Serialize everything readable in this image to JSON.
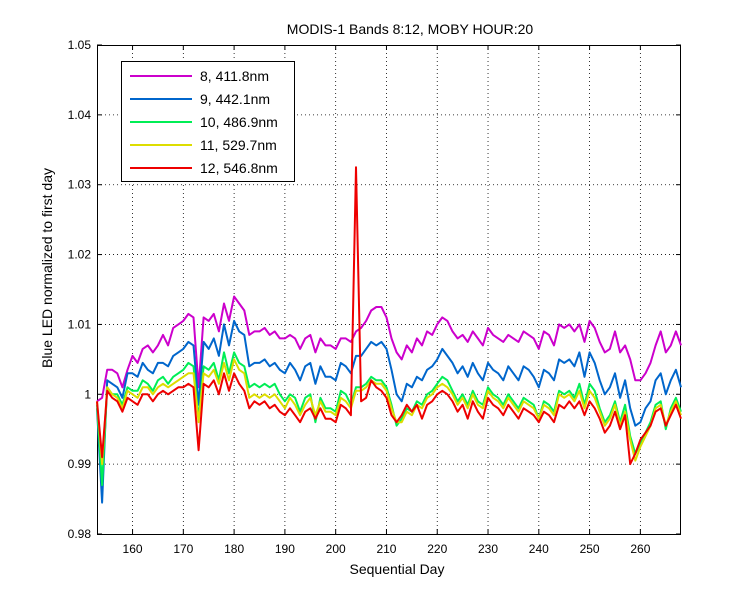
{
  "chart_data": {
    "type": "line",
    "title": "MODIS-1 Bands 8:12, MOBY HOUR:20",
    "xlabel": "Sequential Day",
    "ylabel": "Blue LED normalized to first day",
    "xlim": [
      153,
      268
    ],
    "ylim": [
      0.98,
      1.05
    ],
    "xticks": [
      160,
      170,
      180,
      190,
      200,
      210,
      220,
      230,
      240,
      250,
      260
    ],
    "yticks": [
      0.98,
      0.99,
      1,
      1.01,
      1.02,
      1.03,
      1.04,
      1.05
    ],
    "ytick_labels": [
      "0.98",
      "0.99",
      "1",
      "1.01",
      "1.02",
      "1.03",
      "1.04",
      "1.05"
    ],
    "grid": true,
    "legend_position": "top-left",
    "x": [
      153,
      154,
      155,
      156,
      157,
      158,
      159,
      160,
      161,
      162,
      163,
      164,
      165,
      166,
      167,
      168,
      169,
      170,
      171,
      172,
      173,
      174,
      175,
      176,
      177,
      178,
      179,
      180,
      181,
      182,
      183,
      184,
      185,
      186,
      187,
      188,
      189,
      190,
      191,
      192,
      193,
      194,
      195,
      196,
      197,
      198,
      199,
      200,
      201,
      202,
      203,
      204,
      205,
      206,
      207,
      208,
      209,
      210,
      211,
      212,
      213,
      214,
      215,
      216,
      217,
      218,
      219,
      220,
      221,
      222,
      223,
      224,
      225,
      226,
      227,
      228,
      229,
      230,
      231,
      232,
      233,
      234,
      235,
      236,
      237,
      238,
      239,
      240,
      241,
      242,
      243,
      244,
      245,
      246,
      247,
      248,
      249,
      250,
      251,
      252,
      253,
      254,
      255,
      256,
      257,
      258,
      259,
      260,
      261,
      262,
      263,
      264,
      265,
      266,
      267,
      268
    ],
    "series": [
      {
        "name": "8, 411.8nm",
        "color": "#cc00cc",
        "values": [
          0.999,
          0.9995,
          1.0035,
          1.0035,
          1.003,
          1.001,
          1.0035,
          1.0055,
          1.0045,
          1.0065,
          1.007,
          1.006,
          1.007,
          1.0085,
          1.007,
          1.0095,
          1.01,
          1.0105,
          1.0115,
          1.011,
          1.001,
          1.011,
          1.0105,
          1.0115,
          1.009,
          1.013,
          1.0105,
          1.014,
          1.013,
          1.012,
          1.0085,
          1.009,
          1.009,
          1.0095,
          1.0085,
          1.009,
          1.008,
          1.008,
          1.0085,
          1.008,
          1.0065,
          1.008,
          1.0085,
          1.006,
          1.008,
          1.007,
          1.007,
          1.0065,
          1.008,
          1.008,
          1.0075,
          1.009,
          1.0095,
          1.0105,
          1.012,
          1.0125,
          1.0125,
          1.011,
          1.008,
          1.006,
          1.005,
          1.007,
          1.006,
          1.008,
          1.007,
          1.009,
          1.0085,
          1.01,
          1.011,
          1.0105,
          1.009,
          1.008,
          1.0085,
          1.0075,
          1.009,
          1.008,
          1.007,
          1.0095,
          1.0085,
          1.008,
          1.0075,
          1.0085,
          1.008,
          1.0075,
          1.009,
          1.0085,
          1.008,
          1.0065,
          1.009,
          1.0085,
          1.007,
          1.01,
          1.0095,
          1.01,
          1.009,
          1.01,
          1.0075,
          1.0105,
          1.0095,
          1.0075,
          1.006,
          1.0065,
          1.009,
          1.006,
          1.007,
          1.005,
          1.002,
          1.002,
          1.003,
          1.0045,
          1.007,
          1.009,
          1.006,
          1.007,
          1.009,
          1.007
        ]
      },
      {
        "name": "9, 442.1nm",
        "color": "#0066cc",
        "values": [
          0.998,
          0.9845,
          1.002,
          1.0015,
          1.001,
          0.9995,
          1.003,
          1.003,
          1.0025,
          1.0045,
          1.0035,
          1.003,
          1.0045,
          1.0045,
          1.004,
          1.0055,
          1.006,
          1.0065,
          1.0075,
          1.007,
          0.9985,
          1.0075,
          1.0065,
          1.008,
          1.0055,
          1.01,
          1.007,
          1.0105,
          1.009,
          1.0085,
          1.004,
          1.0045,
          1.0045,
          1.005,
          1.004,
          1.0045,
          1.0035,
          1.003,
          1.0045,
          1.0035,
          1.002,
          1.004,
          1.0045,
          1.0015,
          1.004,
          1.0025,
          1.0025,
          1.002,
          1.0045,
          1.004,
          1.003,
          1.0055,
          1.0055,
          1.0065,
          1.0075,
          1.007,
          1.0075,
          1.0065,
          1.0035,
          1.0,
          0.999,
          1.0015,
          1.001,
          1.0025,
          1.002,
          1.0035,
          1.004,
          1.005,
          1.0065,
          1.0055,
          1.0045,
          1.003,
          1.004,
          1.0025,
          1.0045,
          1.003,
          1.002,
          1.0045,
          1.0035,
          1.003,
          1.002,
          1.004,
          1.003,
          1.002,
          1.004,
          1.0035,
          1.0025,
          1.001,
          1.0035,
          1.003,
          1.002,
          1.005,
          1.0045,
          1.005,
          1.004,
          1.006,
          1.0025,
          1.006,
          1.0045,
          1.002,
          1.0,
          1.001,
          1.003,
          0.9995,
          1.002,
          0.998,
          0.9955,
          0.996,
          0.998,
          0.999,
          1.002,
          1.003,
          1.0,
          1.002,
          1.0035,
          1.001
        ]
      },
      {
        "name": "10, 486.9nm",
        "color": "#00ee55",
        "values": [
          0.9985,
          0.987,
          1.001,
          1.0,
          1.0,
          0.9985,
          1.001,
          1.0005,
          1.0005,
          1.002,
          1.0015,
          1.0005,
          1.002,
          1.0025,
          1.0015,
          1.0025,
          1.003,
          1.0035,
          1.0045,
          1.004,
          0.9965,
          1.004,
          1.0035,
          1.0045,
          1.002,
          1.006,
          1.003,
          1.006,
          1.0045,
          1.004,
          1.001,
          1.0015,
          1.001,
          1.0015,
          1.001,
          1.0015,
          1.0,
          0.999,
          1.0,
          0.9995,
          0.9975,
          0.9995,
          1.0,
          0.996,
          0.9995,
          0.998,
          0.998,
          0.9975,
          1.0005,
          1.0,
          0.9985,
          1.001,
          1.001,
          1.0015,
          1.0025,
          1.002,
          1.002,
          1.001,
          0.9985,
          0.9955,
          0.9965,
          0.998,
          0.9975,
          0.999,
          0.9985,
          1.0,
          1.0005,
          1.0015,
          1.0025,
          1.002,
          1.0005,
          0.999,
          1.0,
          0.9985,
          1.0005,
          0.999,
          0.9985,
          1.001,
          1.0,
          0.9995,
          0.9985,
          1.0,
          0.999,
          0.998,
          0.9995,
          0.999,
          0.9985,
          0.9965,
          0.999,
          0.9985,
          0.9975,
          1.0005,
          1.0,
          1.0005,
          0.9995,
          1.0015,
          0.9985,
          1.0015,
          1.0005,
          0.998,
          0.996,
          0.997,
          0.999,
          0.996,
          0.9985,
          0.994,
          0.9915,
          0.993,
          0.9945,
          0.996,
          0.9985,
          0.999,
          0.995,
          0.998,
          0.9995,
          0.9975
        ]
      },
      {
        "name": "11, 529.7nm",
        "color": "#dddd00",
        "values": [
          0.999,
          0.99,
          1.001,
          1.0,
          0.9995,
          0.998,
          1.0005,
          1.0,
          0.9995,
          1.001,
          1.001,
          1.0,
          1.001,
          1.0015,
          1.001,
          1.0015,
          1.002,
          1.0025,
          1.003,
          1.003,
          0.996,
          1.003,
          1.0025,
          1.0035,
          1.0015,
          1.0045,
          1.002,
          1.005,
          1.0035,
          1.003,
          0.9995,
          1.0,
          0.9995,
          1.0,
          0.9995,
          1.0,
          0.999,
          0.998,
          0.9995,
          0.9985,
          0.997,
          0.9985,
          0.9995,
          0.997,
          0.999,
          0.9975,
          0.9975,
          0.997,
          0.9995,
          0.999,
          0.998,
          1.0005,
          1.0005,
          1.001,
          1.002,
          1.0015,
          1.0015,
          1.0005,
          0.998,
          0.996,
          0.996,
          0.9975,
          0.997,
          0.9985,
          0.998,
          0.9995,
          1.0,
          1.001,
          1.0015,
          1.001,
          1.0,
          0.9985,
          0.9995,
          0.998,
          1.0,
          0.9985,
          0.998,
          1.0005,
          0.9995,
          0.999,
          0.998,
          0.9995,
          0.9985,
          0.9975,
          0.999,
          0.9985,
          0.998,
          0.9965,
          0.9985,
          0.998,
          0.997,
          1.0,
          0.9995,
          1.0,
          0.999,
          1.0005,
          0.998,
          1.0005,
          0.9995,
          0.9975,
          0.9955,
          0.9965,
          0.9985,
          0.9955,
          0.9975,
          0.9935,
          0.9905,
          0.9925,
          0.994,
          0.9955,
          0.998,
          0.9985,
          0.9955,
          0.9975,
          0.999,
          0.997
        ]
      },
      {
        "name": "12, 546.8nm",
        "color": "#ee0000",
        "values": [
          0.999,
          0.991,
          1.0005,
          0.9995,
          0.999,
          0.9975,
          0.9995,
          0.999,
          0.9985,
          1.0,
          1.0,
          0.999,
          1.0,
          1.0005,
          1.0,
          1.0005,
          1.001,
          1.001,
          1.0015,
          1.001,
          0.992,
          1.0015,
          1.001,
          1.002,
          1.0,
          1.003,
          1.0005,
          1.003,
          1.0015,
          1.0005,
          0.998,
          0.999,
          0.9985,
          0.999,
          0.998,
          0.9985,
          0.9975,
          0.997,
          0.998,
          0.997,
          0.996,
          0.9975,
          0.998,
          0.9965,
          0.998,
          0.9965,
          0.9965,
          0.996,
          0.9985,
          0.998,
          0.997,
          1.0325,
          0.999,
          0.9995,
          1.002,
          1.001,
          1.0005,
          0.9995,
          0.997,
          0.996,
          0.997,
          0.9985,
          0.9975,
          0.9985,
          0.9965,
          0.9985,
          0.999,
          1.0,
          1.0005,
          1.0,
          0.999,
          0.9975,
          0.9985,
          0.9965,
          0.999,
          0.9975,
          0.9965,
          0.9995,
          0.9985,
          0.998,
          0.997,
          0.9985,
          0.9975,
          0.9965,
          0.998,
          0.9975,
          0.997,
          0.996,
          0.9975,
          0.997,
          0.996,
          0.9985,
          0.998,
          0.999,
          0.998,
          0.999,
          0.997,
          0.999,
          0.998,
          0.9965,
          0.9945,
          0.9955,
          0.9975,
          0.995,
          0.997,
          0.99,
          0.9915,
          0.9935,
          0.9945,
          0.9955,
          0.9975,
          0.998,
          0.9955,
          0.997,
          0.9985,
          0.9965
        ]
      }
    ]
  }
}
